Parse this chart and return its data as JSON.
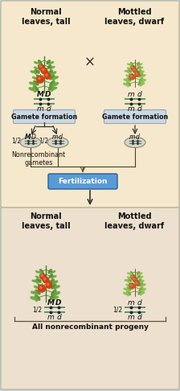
{
  "bg_top": "#f5e8cc",
  "bg_bottom": "#ede0ce",
  "bg_outer": "#c0d4e0",
  "title_left_top": "Normal\nleaves, tall",
  "title_right_top": "Mottled\nleaves, dwarf",
  "title_left_bottom": "Normal\nleaves, tall",
  "title_right_bottom": "Mottled\nleaves, dwarf",
  "gamete_box_color": "#ccd8e4",
  "gamete_box_edge": "#8aa8c0",
  "fertilization_color": "#5b9bd5",
  "fertilization_text": "Fertilization",
  "gamete_text": "Gamete formation",
  "nonrecomb_text": "Nonrecombinant\ngametes",
  "all_nonrecomb_text": "All nonrecombinant progeny",
  "fraction": "1/2",
  "cross_symbol": "×",
  "line_color": "#555533",
  "chrom_line_color": "#3a8a60",
  "text_color": "#111111",
  "arrow_color": "#333333"
}
